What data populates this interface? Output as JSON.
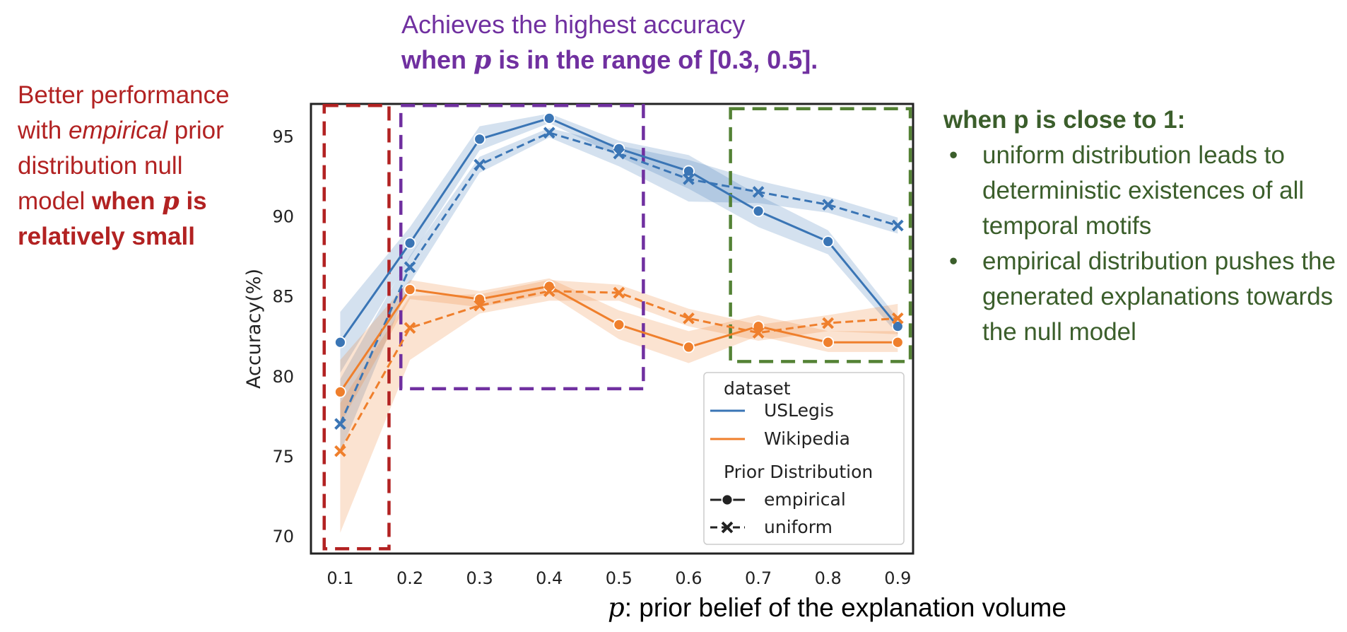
{
  "chart_data": {
    "type": "line",
    "xlabel_symbol": "p",
    "xlabel_rest": ": prior belief of the explanation volume",
    "ylabel": "Accuracy(%)",
    "x": [
      0.1,
      0.2,
      0.3,
      0.4,
      0.5,
      0.6,
      0.7,
      0.8,
      0.9
    ],
    "x_tick_labels": [
      "0.1",
      "0.2",
      "0.3",
      "0.4",
      "0.5",
      "0.6",
      "0.7",
      "0.8",
      "0.9"
    ],
    "ylim": [
      68.9,
      97.0
    ],
    "y_ticks": [
      70,
      75,
      80,
      85,
      90,
      95
    ],
    "y_tick_labels": [
      "70",
      "75",
      "80",
      "85",
      "90",
      "95"
    ],
    "xlim": [
      0.058,
      0.922
    ],
    "series": [
      {
        "name": "USLegis-empirical",
        "dataset": "USLegis",
        "prior": "empirical",
        "color": "#3a75b5",
        "dashed": false,
        "marker": "circle",
        "values": [
          82.1,
          88.3,
          94.8,
          96.1,
          94.2,
          92.8,
          90.3,
          88.4,
          83.1
        ],
        "lower": [
          80.2,
          87.4,
          94.1,
          95.8,
          93.7,
          91.7,
          89.3,
          87.6,
          82.6
        ],
        "upper": [
          84.0,
          89.3,
          95.6,
          96.4,
          94.7,
          93.8,
          91.3,
          89.1,
          83.6
        ]
      },
      {
        "name": "USLegis-uniform",
        "dataset": "USLegis",
        "prior": "uniform",
        "color": "#3a75b5",
        "dashed": true,
        "marker": "x",
        "values": [
          77.0,
          86.8,
          93.2,
          95.2,
          93.9,
          92.3,
          91.5,
          90.7,
          89.4
        ],
        "lower": [
          75.2,
          85.8,
          92.7,
          94.9,
          93.1,
          90.9,
          90.8,
          90.2,
          88.9
        ],
        "upper": [
          79.8,
          87.5,
          93.7,
          95.5,
          94.4,
          93.5,
          92.2,
          91.2,
          89.9
        ]
      },
      {
        "name": "Wikipedia-empirical",
        "dataset": "Wikipedia",
        "prior": "empirical",
        "color": "#ef7f2c",
        "dashed": false,
        "marker": "circle",
        "values": [
          79.0,
          85.4,
          84.8,
          85.6,
          83.2,
          81.8,
          83.1,
          82.1,
          82.1
        ],
        "lower": [
          77.0,
          84.8,
          84.3,
          85.1,
          82.3,
          80.8,
          82.5,
          81.5,
          81.5
        ],
        "upper": [
          81.0,
          86.0,
          85.3,
          86.1,
          84.1,
          82.8,
          83.8,
          82.8,
          82.8
        ]
      },
      {
        "name": "Wikipedia-uniform",
        "dataset": "Wikipedia",
        "prior": "uniform",
        "color": "#ef7f2c",
        "dashed": true,
        "marker": "x",
        "values": [
          75.3,
          83.0,
          84.4,
          85.3,
          85.2,
          83.6,
          82.7,
          83.3,
          83.6
        ],
        "lower": [
          70.2,
          81.0,
          83.9,
          84.7,
          84.7,
          83.1,
          82.2,
          82.8,
          82.6
        ],
        "upper": [
          78.3,
          85.0,
          85.1,
          86.0,
          85.7,
          84.2,
          83.2,
          83.8,
          84.5
        ]
      }
    ],
    "legend": {
      "position": "lower-right",
      "dataset_title": "dataset",
      "datasets": [
        {
          "label": "USLegis",
          "color": "#3a75b5"
        },
        {
          "label": "Wikipedia",
          "color": "#ef7f2c"
        }
      ],
      "prior_title": "Prior Distribution",
      "priors": [
        {
          "label": "empirical",
          "dashed": false,
          "marker": "circle"
        },
        {
          "label": "uniform",
          "dashed": true,
          "marker": "x"
        }
      ]
    },
    "highlight_boxes": [
      {
        "name": "red-dashed-box",
        "color": "#b22222",
        "x_range": [
          0.077,
          0.17
        ],
        "y_range": [
          69.2,
          96.9
        ]
      },
      {
        "name": "purple-dashed-box",
        "color": "#7030a0",
        "x_range": [
          0.187,
          0.535
        ],
        "y_range": [
          79.2,
          96.9
        ]
      },
      {
        "name": "green-dashed-box",
        "color": "#548235",
        "x_range": [
          0.66,
          0.918
        ],
        "y_range": [
          80.9,
          96.7
        ]
      }
    ]
  },
  "annotations": {
    "left_line1": "Better performance",
    "left_line2a": "with ",
    "left_line2b": "empirical",
    "left_line2c": " prior",
    "left_line3": "distribution null",
    "left_line4a": "model ",
    "left_line4b": "when ",
    "left_line4c": "p",
    "left_line4d": " is",
    "left_line5": "relatively small",
    "top_line1": "Achieves the highest accuracy",
    "top_line2a": "when ",
    "top_line2b": "p",
    "top_line2c": " is in the range of [0.3, 0.5].",
    "right_title": "when p is close to 1:",
    "right_bullet1": "uniform distribution leads to deterministic existences of all temporal motifs",
    "right_bullet2": "empirical distribution pushes the generated explanations towards the null model"
  }
}
